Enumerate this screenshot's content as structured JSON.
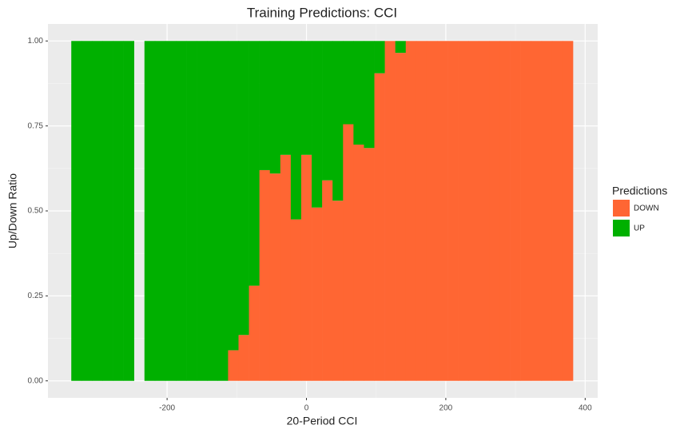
{
  "chart_data": {
    "type": "histogram",
    "title": "Training Predictions: CCI",
    "x_label": "20-Period CCI",
    "y_label": "Up/Down Ratio",
    "legend_title": "Predictions",
    "bins": [
      -337.5,
      -322.5,
      -307.5,
      -292.5,
      -277.5,
      -262.5,
      -247.5,
      -232.5,
      -217.5,
      -202.5,
      -187.5,
      -172.5,
      -157.5,
      -142.5,
      -127.5,
      -112.5,
      -97.5,
      -82.5,
      -67.5,
      -52.5,
      -37.5,
      -22.5,
      -7.5,
      7.5,
      22.5,
      37.5,
      52.5,
      67.5,
      82.5,
      97.5,
      112.5,
      127.5,
      142.5,
      157.5,
      172.5,
      187.5,
      202.5,
      217.5,
      232.5,
      247.5,
      262.5,
      277.5,
      292.5,
      307.5,
      322.5,
      337.5,
      352.5,
      367.5,
      382.5
    ],
    "series": [
      {
        "name": "DOWN",
        "color": "#ff6633",
        "values": [
          0,
          0,
          0,
          0,
          0,
          0,
          null,
          0,
          0,
          0,
          0,
          0,
          0,
          0,
          0,
          0.09,
          0.135,
          0.28,
          0.62,
          0.61,
          0.665,
          0.475,
          0.665,
          0.51,
          0.59,
          0.53,
          0.755,
          0.695,
          0.685,
          0.905,
          1,
          0.965,
          1,
          1,
          1,
          1,
          1,
          1,
          1,
          1,
          1,
          1,
          1,
          1,
          1,
          1,
          1,
          1
        ]
      },
      {
        "name": "UP",
        "color": "#00b000",
        "values": [
          1,
          1,
          1,
          1,
          1,
          1,
          null,
          1,
          1,
          1,
          1,
          1,
          1,
          1,
          1,
          0.91,
          0.865,
          0.72,
          0.38,
          0.39,
          0.335,
          0.525,
          0.335,
          0.49,
          0.41,
          0.47,
          0.245,
          0.305,
          0.315,
          0.095,
          0,
          0.035,
          0,
          0,
          0,
          0,
          0,
          0,
          0,
          0,
          0,
          0,
          0,
          0,
          0,
          0,
          0,
          0
        ]
      }
    ],
    "xlim": [
      -371,
      418
    ],
    "xticks": [
      -200,
      0,
      200,
      400
    ],
    "ylim": [
      -0.05,
      1.05
    ],
    "yticks": [
      {
        "value": 0,
        "label": "0.00"
      },
      {
        "value": 0.25,
        "label": "0.25"
      },
      {
        "value": 0.5,
        "label": "0.50"
      },
      {
        "value": 0.75,
        "label": "0.75"
      },
      {
        "value": 1,
        "label": "1.00"
      }
    ],
    "grid": true,
    "stacked": true,
    "legend_position": "right"
  }
}
